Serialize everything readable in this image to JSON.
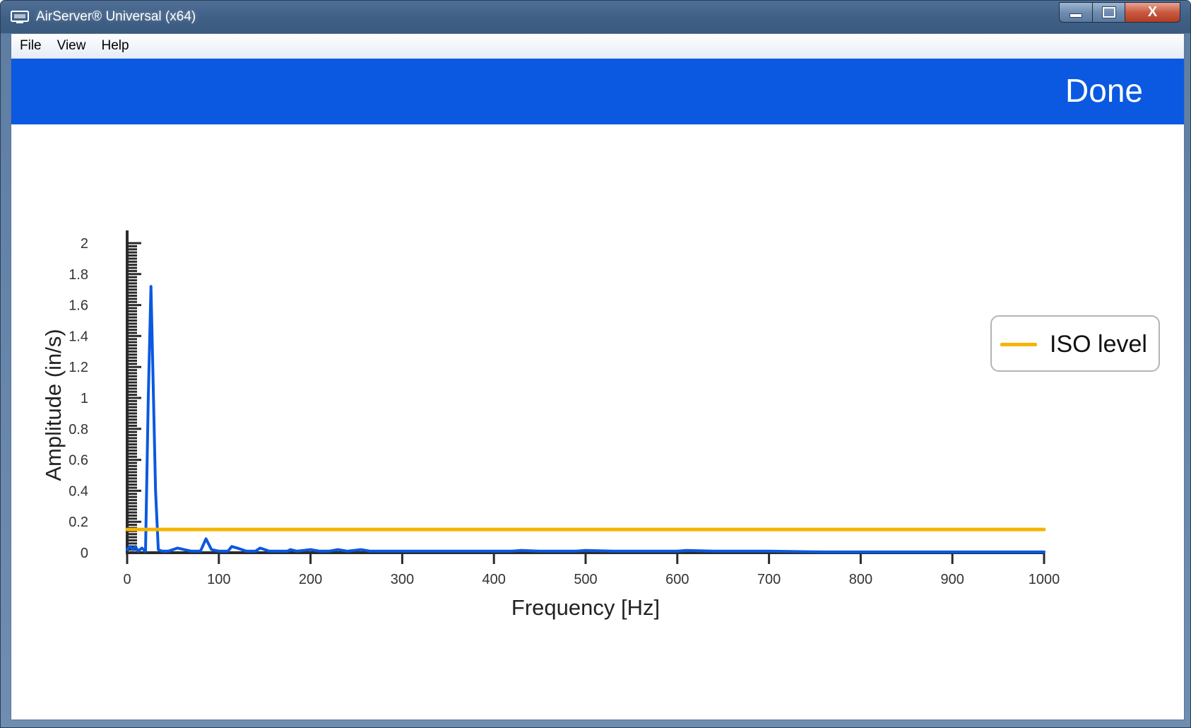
{
  "window": {
    "title": "AirServer® Universal (x64)",
    "controls": {
      "minimize": "—",
      "maximize": "□",
      "close": "X"
    }
  },
  "menu": [
    "File",
    "View",
    "Help"
  ],
  "header": {
    "done_label": "Done",
    "background": "#0a59e0"
  },
  "legend": {
    "label": "ISO level"
  },
  "chart_data": {
    "type": "line",
    "xlabel": "Frequency [Hz]",
    "ylabel": "Amplitude (in/s)",
    "xlim": [
      0,
      1000
    ],
    "ylim": [
      0,
      2
    ],
    "xticks": [
      0,
      100,
      200,
      300,
      400,
      500,
      600,
      700,
      800,
      900,
      1000
    ],
    "yticks": [
      0,
      0.2,
      0.4,
      0.6,
      0.8,
      1,
      1.2,
      1.4,
      1.6,
      1.8,
      2
    ],
    "ytick_labels": [
      "0",
      "0.2",
      "0.4",
      "0.6",
      "0.8",
      "1",
      "1.2",
      "1.4",
      "1.6",
      "1.8",
      "2"
    ],
    "grid": false,
    "legend_position": "top-right",
    "series": [
      {
        "name": "",
        "color": "#0a59e0",
        "x": [
          0,
          3,
          6,
          9,
          12,
          16,
          20,
          23,
          26,
          28,
          31,
          34,
          38,
          45,
          55,
          62,
          70,
          80,
          86,
          92,
          100,
          110,
          114,
          120,
          130,
          140,
          145,
          155,
          165,
          175,
          178,
          185,
          200,
          210,
          220,
          230,
          240,
          255,
          265,
          280,
          300,
          350,
          400,
          420,
          430,
          450,
          480,
          490,
          500,
          530,
          560,
          600,
          610,
          640,
          650,
          700,
          760,
          800,
          850,
          860,
          900,
          950,
          1000
        ],
        "y": [
          0.02,
          0.04,
          0.02,
          0.04,
          0.01,
          0.03,
          0.01,
          1.0,
          1.72,
          1.2,
          0.4,
          0.02,
          0.01,
          0.01,
          0.03,
          0.02,
          0.01,
          0.01,
          0.09,
          0.02,
          0.01,
          0.01,
          0.04,
          0.03,
          0.01,
          0.01,
          0.03,
          0.01,
          0.01,
          0.01,
          0.02,
          0.01,
          0.02,
          0.01,
          0.01,
          0.02,
          0.01,
          0.02,
          0.01,
          0.01,
          0.01,
          0.01,
          0.01,
          0.01,
          0.015,
          0.01,
          0.01,
          0.01,
          0.015,
          0.01,
          0.01,
          0.01,
          0.015,
          0.01,
          0.01,
          0.01,
          0.005,
          0.005,
          0.005,
          0.005,
          0.005,
          0.005,
          0.005
        ]
      },
      {
        "name": "ISO level",
        "color": "#f5b400",
        "x": [
          0,
          1000
        ],
        "y": [
          0.15,
          0.15
        ]
      }
    ]
  }
}
